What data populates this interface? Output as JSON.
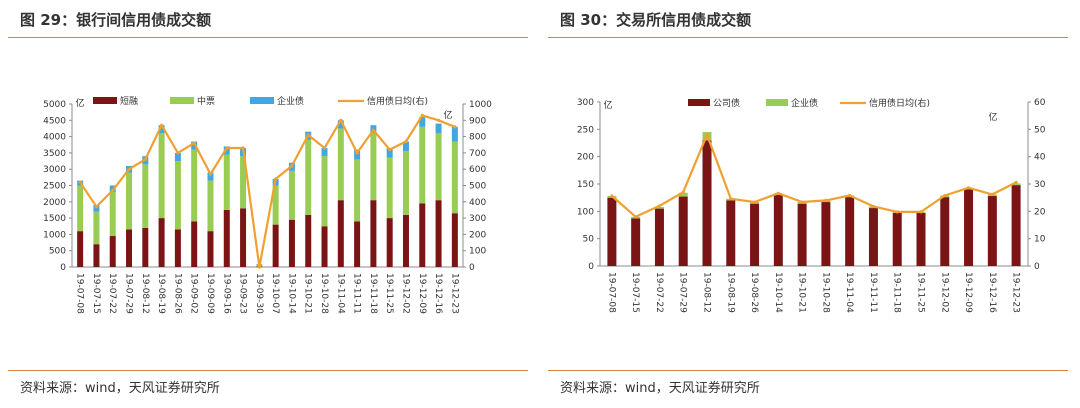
{
  "charts": [
    {
      "title": "图 29：银行间信用债成交额",
      "source": "资料来源：wind，天风证券研究所",
      "chart_data": {
        "type": "bar",
        "stacked": true,
        "categories": [
          "19-07-08",
          "19-07-15",
          "19-07-22",
          "19-07-29",
          "19-08-12",
          "19-08-19",
          "19-08-26",
          "19-09-02",
          "19-09-09",
          "19-09-16",
          "19-09-23",
          "19-09-30",
          "19-10-07",
          "19-10-14",
          "19-10-21",
          "19-10-28",
          "19-11-04",
          "19-11-11",
          "19-11-18",
          "19-11-25",
          "19-12-02",
          "19-12-09",
          "19-12-16",
          "19-12-23"
        ],
        "series": [
          {
            "name": "短融",
            "kind": "bar",
            "axis": "left",
            "color": "#7b1515",
            "values": [
              1100,
              700,
              950,
              1150,
              1200,
              1500,
              1150,
              1400,
              1100,
              1750,
              1800,
              20,
              1300,
              1450,
              1600,
              1250,
              2050,
              1400,
              2050,
              1500,
              1600,
              1950,
              2050,
              1650
            ]
          },
          {
            "name": "中票",
            "kind": "bar",
            "axis": "left",
            "color": "#99cc55",
            "values": [
              1400,
              1000,
              1350,
              1750,
              1950,
              2600,
              2100,
              2200,
              1550,
              1700,
              1600,
              50,
              1200,
              1500,
              2300,
              2150,
              2200,
              1900,
              2050,
              1850,
              1950,
              2350,
              2050,
              2200
            ]
          },
          {
            "name": "企业债",
            "kind": "bar",
            "axis": "left",
            "color": "#44a6e0",
            "values": [
              150,
              200,
              200,
              200,
              250,
              250,
              250,
              250,
              250,
              250,
              250,
              20,
              200,
              250,
              250,
              250,
              250,
              300,
              250,
              300,
              300,
              300,
              300,
              450
            ]
          },
          {
            "name": "信用债日均(右)",
            "kind": "line",
            "axis": "right",
            "color": "#f0a030",
            "values": [
              520,
              370,
              470,
              600,
              660,
              870,
              700,
              760,
              570,
              730,
              730,
              0,
              540,
              620,
              810,
              730,
              900,
              700,
              840,
              720,
              770,
              930,
              900,
              860
            ]
          }
        ],
        "y_left": {
          "label": "亿",
          "ticks": [
            0,
            500,
            1000,
            1500,
            2000,
            2500,
            3000,
            3500,
            4000,
            4500,
            5000
          ],
          "range": [
            0,
            5000
          ]
        },
        "y_right": {
          "label": "亿",
          "ticks": [
            0,
            100,
            200,
            300,
            400,
            500,
            600,
            700,
            800,
            900,
            1000
          ],
          "range": [
            0,
            1000
          ]
        },
        "legend_position": "top"
      }
    },
    {
      "title": "图 30：交易所信用债成交额",
      "source": "资料来源：wind，天风证券研究所",
      "chart_data": {
        "type": "bar",
        "stacked": true,
        "categories": [
          "19-07-08",
          "19-07-15",
          "19-07-22",
          "19-07-29",
          "19-08-12",
          "19-08-19",
          "19-08-26",
          "19-10-14",
          "19-10-21",
          "19-10-28",
          "19-11-04",
          "19-11-11",
          "19-11-18",
          "19-11-25",
          "19-12-02",
          "19-12-09",
          "19-12-16",
          "19-12-23"
        ],
        "series": [
          {
            "name": "公司债",
            "kind": "bar",
            "axis": "left",
            "color": "#7b1515",
            "values": [
              125,
              87,
              105,
              127,
              230,
              120,
              114,
              130,
              114,
              117,
              126,
              106,
              97,
              97,
              126,
              140,
              128,
              148
            ]
          },
          {
            "name": "企业债",
            "kind": "bar",
            "axis": "left",
            "color": "#99cc55",
            "values": [
              3,
              3,
              3,
              7,
              15,
              3,
              3,
              3,
              3,
              3,
              3,
              3,
              2,
              2,
              3,
              3,
              3,
              3
            ]
          },
          {
            "name": "信用债日均(右)",
            "kind": "line",
            "axis": "right",
            "color": "#f0a030",
            "values": [
              25.6,
              18,
              22,
              27,
              48,
              24.6,
              23.4,
              26.6,
              23.4,
              24,
              25.8,
              21.8,
              19.8,
              19.8,
              25.8,
              28.6,
              26.2,
              30.6
            ]
          }
        ],
        "y_left": {
          "label": "亿",
          "ticks": [
            0,
            50,
            100,
            150,
            200,
            250,
            300
          ],
          "range": [
            0,
            300
          ]
        },
        "y_right": {
          "label": "亿",
          "ticks": [
            0,
            10,
            20,
            30,
            40,
            50,
            60
          ],
          "range": [
            0,
            60
          ]
        },
        "legend_position": "top"
      }
    }
  ]
}
